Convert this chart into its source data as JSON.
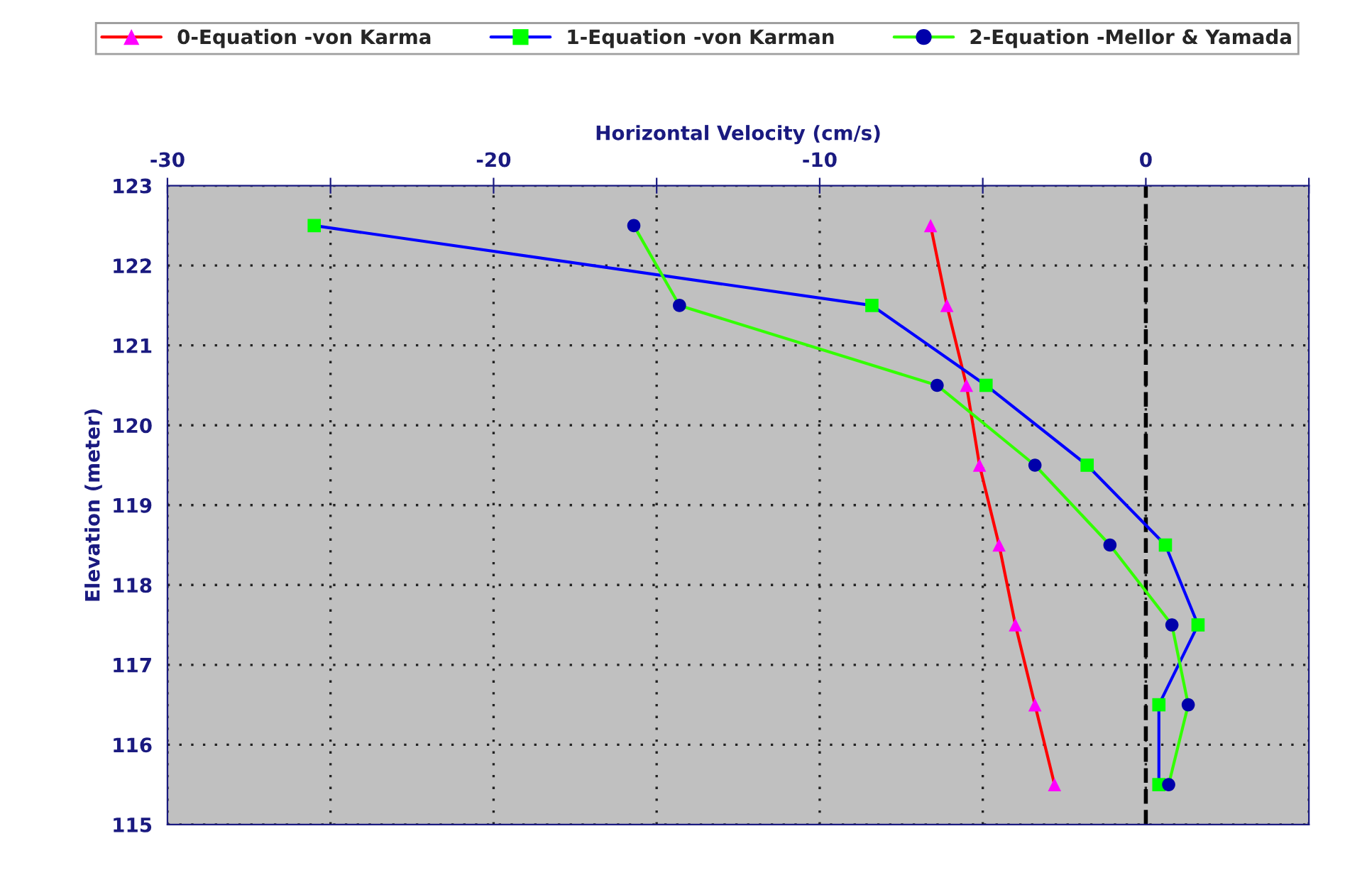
{
  "chart_data": {
    "type": "line",
    "xlabel": "Horizontal Velocity (cm/s)",
    "ylabel": "Elevation (meter)",
    "xlim": [
      -30,
      5
    ],
    "xticks": [
      -30,
      {
        "value": -25,
        "label": null
      },
      -20,
      {
        "value": -15,
        "label": null
      },
      -10,
      {
        "value": -5,
        "label": null
      },
      0,
      {
        "value": 5,
        "label": null
      }
    ],
    "ylim": [
      115,
      123
    ],
    "yticks": [
      115,
      116,
      117,
      118,
      119,
      120,
      121,
      122,
      123
    ],
    "grid": true,
    "legend": "top",
    "ref_lines": [
      {
        "axis": "x",
        "value": 0,
        "color": "#000000",
        "line_style": "dashed"
      }
    ],
    "series": [
      {
        "name": "0-Equation -von Karma",
        "color": "#ff0000",
        "colors": [
          "#ff00ff",
          "#ff00ff",
          "#ff00ff",
          "#ff00ff",
          "#ff00ff",
          "#ff00ff",
          "#ff00ff",
          "#ff00ff"
        ],
        "marker": "triangle",
        "x": [
          -6.6,
          -6.1,
          -5.5,
          -5.1,
          -4.5,
          -4.0,
          -3.4,
          -2.8
        ],
        "values": [
          122.5,
          121.5,
          120.5,
          119.5,
          118.5,
          117.5,
          116.5,
          115.5
        ]
      },
      {
        "name": "1-Equation -von Karman",
        "color": "#0000ff",
        "colors": [
          "#00ff00",
          "#00ff00",
          "#00ff00",
          "#00ff00",
          "#00ff00",
          "#00ff00",
          "#00ff00",
          "#00ff00"
        ],
        "marker": "square",
        "x": [
          -25.5,
          -8.4,
          -4.9,
          -1.8,
          0.6,
          1.6,
          0.4,
          0.4
        ],
        "values": [
          122.5,
          121.5,
          120.5,
          119.5,
          118.5,
          117.5,
          116.5,
          115.5
        ]
      },
      {
        "name": "2-Equation -Mellor & Yamada",
        "color": "#33ff00",
        "colors": [
          "#0000aa",
          "#0000aa",
          "#0000aa",
          "#0000aa",
          "#0000aa",
          "#0000aa",
          "#0000aa",
          "#0000aa"
        ],
        "marker": "circle",
        "x": [
          -15.7,
          -14.3,
          -6.4,
          -3.4,
          -1.1,
          0.8,
          1.3,
          0.7
        ],
        "values": [
          122.5,
          121.5,
          120.5,
          119.5,
          118.5,
          117.5,
          116.5,
          115.5
        ]
      }
    ]
  }
}
